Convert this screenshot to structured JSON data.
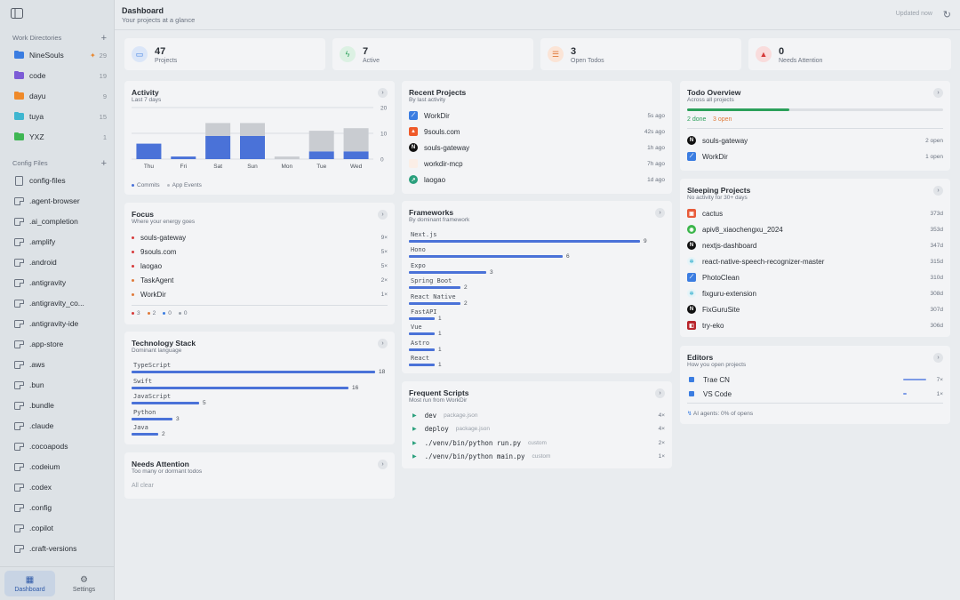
{
  "sidebar": {
    "work_directories_title": "Work Directories",
    "work_directories": [
      {
        "label": "NineSouls",
        "count": "29",
        "pinned": true,
        "color": "#3b7de1"
      },
      {
        "label": "code",
        "count": "19",
        "color": "#7c5cd6"
      },
      {
        "label": "dayu",
        "count": "9",
        "color": "#ef8a2a"
      },
      {
        "label": "tuya",
        "count": "15",
        "color": "#3fb6d0"
      },
      {
        "label": "YXZ",
        "count": "1",
        "color": "#3eb653"
      }
    ],
    "config_files_title": "Config Files",
    "config_files": [
      "config-files",
      ".agent-browser",
      ".ai_completion",
      ".amplify",
      ".android",
      ".antigravity",
      ".antigravity_co...",
      ".antigravity-ide",
      ".app-store",
      ".aws",
      ".bun",
      ".bundle",
      ".claude",
      ".cocoapods",
      ".codeium",
      ".codex",
      ".config",
      ".copilot",
      ".craft-versions"
    ],
    "tabs": {
      "dashboard": "Dashboard",
      "settings": "Settings"
    }
  },
  "header": {
    "title": "Dashboard",
    "subtitle": "Your projects at a glance",
    "updated": "Updated now"
  },
  "stats": [
    {
      "value": "47",
      "label": "Projects",
      "bg": "#dbe6f8",
      "fg": "#3b7de1",
      "icon": "folder-icon"
    },
    {
      "value": "7",
      "label": "Active",
      "bg": "#dcf1e3",
      "fg": "#2ba05a",
      "icon": "bolt-icon"
    },
    {
      "value": "3",
      "label": "Open Todos",
      "bg": "#fbe4d6",
      "fg": "#e07a3a",
      "icon": "checklist-icon"
    },
    {
      "value": "0",
      "label": "Needs Attention",
      "bg": "#f9dcdc",
      "fg": "#d63a3a",
      "icon": "warning-icon"
    }
  ],
  "activity": {
    "title": "Activity",
    "subtitle": "Last 7 days",
    "legend": {
      "commits": "Commits",
      "app_events": "App Events"
    },
    "chart_data": {
      "type": "bar",
      "categories": [
        "Thu",
        "Fri",
        "Sat",
        "Sun",
        "Mon",
        "Tue",
        "Wed"
      ],
      "series": [
        {
          "name": "Commits",
          "values": [
            6,
            1,
            9,
            9,
            0,
            3,
            3
          ]
        },
        {
          "name": "App Events",
          "values": [
            0,
            0,
            5,
            5,
            1,
            8,
            9
          ]
        }
      ],
      "yticks": [
        "0",
        "10",
        "20"
      ],
      "ylim": [
        0,
        20
      ]
    }
  },
  "focus": {
    "title": "Focus",
    "subtitle": "Where your energy goes",
    "items": [
      {
        "name": "souls-gateway",
        "value": "9×",
        "color": "#d63a3a"
      },
      {
        "name": "9souls.com",
        "value": "5×",
        "color": "#d63a3a"
      },
      {
        "name": "laogao",
        "value": "5×",
        "color": "#d63a3a"
      },
      {
        "name": "TaskAgent",
        "value": "2×",
        "color": "#e07a3a"
      },
      {
        "name": "WorkDir",
        "value": "1×",
        "color": "#e07a3a"
      }
    ],
    "legend": [
      {
        "value": "3",
        "color": "#d63a3a"
      },
      {
        "value": "2",
        "color": "#e07a3a"
      },
      {
        "value": "0",
        "color": "#3b7de1"
      },
      {
        "value": "0",
        "color": "#9aa1aa"
      }
    ]
  },
  "tech_stack": {
    "title": "Technology Stack",
    "subtitle": "Dominant language",
    "items": [
      {
        "name": "TypeScript",
        "value": 18
      },
      {
        "name": "Swift",
        "value": 16
      },
      {
        "name": "JavaScript",
        "value": 5
      },
      {
        "name": "Python",
        "value": 3
      },
      {
        "name": "Java",
        "value": 2
      }
    ]
  },
  "needs_attention": {
    "title": "Needs Attention",
    "subtitle": "Too many or dormant todos",
    "empty": "All clear"
  },
  "recent_projects": {
    "title": "Recent Projects",
    "subtitle": "By last activity",
    "items": [
      {
        "name": "WorkDir",
        "time": "5s ago",
        "icon": "swift"
      },
      {
        "name": "9souls.com",
        "time": "42s ago",
        "icon": "fire"
      },
      {
        "name": "souls-gateway",
        "time": "1h ago",
        "icon": "next"
      },
      {
        "name": "workdir-mcp",
        "time": "7h ago",
        "icon": "blank"
      },
      {
        "name": "laogao",
        "time": "1d ago",
        "icon": "leaf"
      }
    ]
  },
  "frameworks": {
    "title": "Frameworks",
    "subtitle": "By dominant framework",
    "items": [
      {
        "name": "Next.js",
        "value": 9
      },
      {
        "name": "Hono",
        "value": 6
      },
      {
        "name": "Expo",
        "value": 3
      },
      {
        "name": "Spring Boot",
        "value": 2
      },
      {
        "name": "React Native",
        "value": 2
      },
      {
        "name": "FastAPI",
        "value": 1
      },
      {
        "name": "Vue",
        "value": 1
      },
      {
        "name": "Astro",
        "value": 1
      },
      {
        "name": "React",
        "value": 1
      }
    ]
  },
  "frequent_scripts": {
    "title": "Frequent Scripts",
    "subtitle": "Most run from WorkDir",
    "items": [
      {
        "cmd": "dev",
        "src": "package.json",
        "count": "4×"
      },
      {
        "cmd": "deploy",
        "src": "package.json",
        "count": "4×"
      },
      {
        "cmd": "./venv/bin/python run.py",
        "src": "custom",
        "count": "2×"
      },
      {
        "cmd": "./venv/bin/python main.py",
        "src": "custom",
        "count": "1×"
      }
    ]
  },
  "todo_overview": {
    "title": "Todo Overview",
    "subtitle": "Across all projects",
    "done_label": "2 done",
    "open_label": "3 open",
    "progress": 0.4,
    "items": [
      {
        "name": "souls-gateway",
        "value": "2 open",
        "icon": "next"
      },
      {
        "name": "WorkDir",
        "value": "1 open",
        "icon": "swift"
      }
    ]
  },
  "sleeping_projects": {
    "title": "Sleeping Projects",
    "subtitle": "No activity for 30+ days",
    "items": [
      {
        "name": "cactus",
        "value": "373d",
        "icon": "cactus"
      },
      {
        "name": "apiv8_xiaochengxu_2024",
        "value": "353d",
        "icon": "wechat"
      },
      {
        "name": "nextjs-dashboard",
        "value": "347d",
        "icon": "next"
      },
      {
        "name": "react-native-speech-recognizer-master",
        "value": "315d",
        "icon": "react"
      },
      {
        "name": "PhotoClean",
        "value": "310d",
        "icon": "swift"
      },
      {
        "name": "fixguru-extension",
        "value": "308d",
        "icon": "react"
      },
      {
        "name": "FixGuruSite",
        "value": "307d",
        "icon": "next"
      },
      {
        "name": "try-eko",
        "value": "306d",
        "icon": "eko"
      }
    ]
  },
  "editors": {
    "title": "Editors",
    "subtitle": "How you open projects",
    "items": [
      {
        "name": "Trae CN",
        "value": "7×",
        "share": 0.875
      },
      {
        "name": "VS Code",
        "value": "1×",
        "share": 0.125
      }
    ],
    "ai_note": "AI agents: 0% of opens"
  }
}
